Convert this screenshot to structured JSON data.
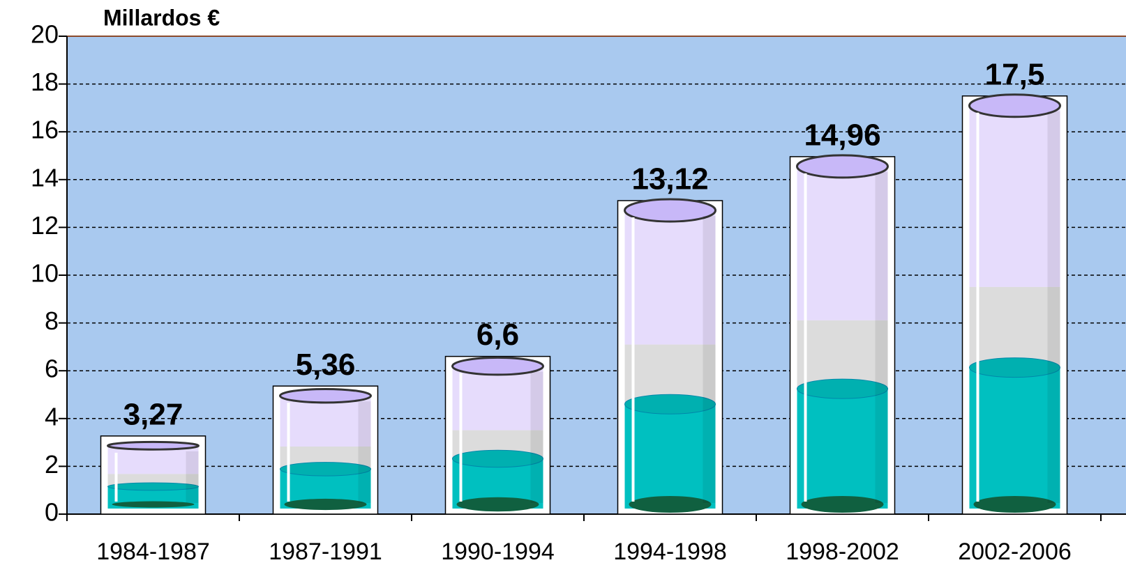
{
  "chart_data": {
    "type": "bar",
    "y_axis_label": "Millardos €",
    "categories": [
      "1984-1987",
      "1987-1991",
      "1990-1994",
      "1994-1998",
      "1998-2002",
      "2002-2006"
    ],
    "values": [
      3.27,
      5.36,
      6.6,
      13.12,
      14.96,
      17.5
    ],
    "value_labels": [
      "3,27",
      "5,36",
      "6,6",
      "13,12",
      "14,96",
      "17,5"
    ],
    "color": "#00c0c0",
    "ylim": [
      0,
      20
    ],
    "yticks": [
      0,
      2,
      4,
      6,
      8,
      10,
      12,
      14,
      16,
      18,
      20
    ],
    "grid": true
  }
}
